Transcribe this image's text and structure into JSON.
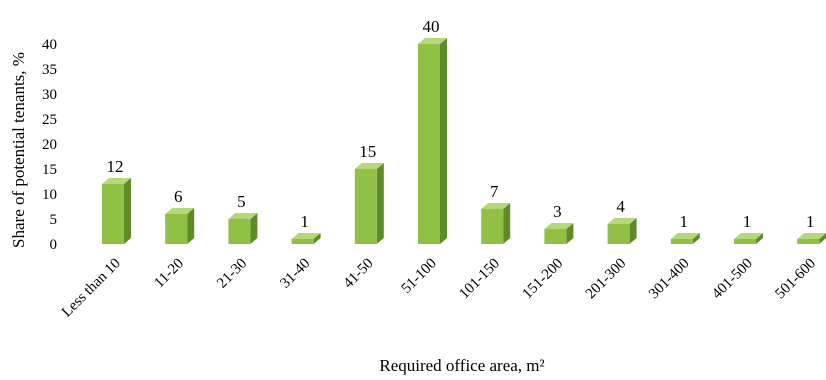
{
  "chart_data": {
    "type": "bar",
    "title": "",
    "xlabel": "Required office area, m²",
    "ylabel": "Share of potential tenants, %",
    "categories": [
      "Less than 10",
      "11-20",
      "21-30",
      "31-40",
      "41-50",
      "51-100",
      "101-150",
      "151-200",
      "201-300",
      "301-400",
      "401-500",
      "501-600"
    ],
    "values": [
      12,
      6,
      5,
      1,
      15,
      40,
      7,
      3,
      4,
      1,
      1,
      1
    ],
    "ylim": [
      0,
      40
    ],
    "yticks": [
      0,
      5,
      10,
      15,
      20,
      25,
      30,
      35,
      40
    ],
    "grid": false,
    "legend": "none",
    "bar_style": "3d",
    "colors": {
      "front": "#92c047",
      "side": "#5f8a2a",
      "top": "#b6d77a"
    }
  }
}
